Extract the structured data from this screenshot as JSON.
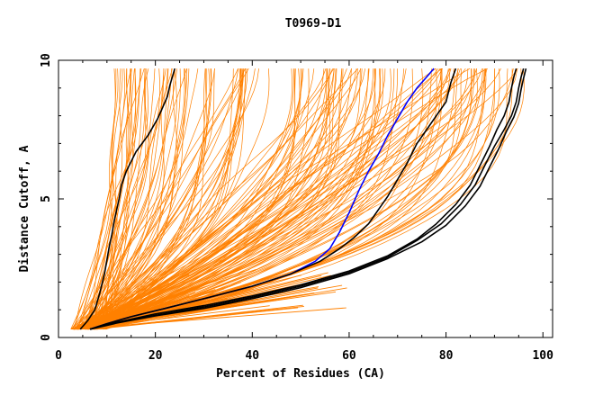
{
  "chart_data": {
    "type": "line",
    "title": "T0969-D1",
    "xlabel": "Percent of Residues (CA)",
    "ylabel": "Distance Cutoff, A",
    "xlim": [
      0,
      102
    ],
    "ylim": [
      0,
      10
    ],
    "xticks": [
      0,
      20,
      40,
      60,
      80,
      100
    ],
    "yticks": [
      0,
      5,
      10
    ],
    "grid": false,
    "colors": {
      "background_models": "#ff8000",
      "highlight_black": "#000000",
      "highlight_blue": "#0000ff"
    },
    "background_models": {
      "count": 170,
      "y_start": 0.3,
      "y_end": 9.7,
      "envelope_x_at_y_start": [
        2.5,
        10
      ],
      "envelope_x_at_y_end": [
        11,
        97
      ]
    },
    "series": [
      {
        "name": "model-black-1",
        "color": "#000000",
        "x": [
          4.5,
          6,
          7.5,
          8.5,
          9.5,
          10,
          10.5,
          11,
          11.5,
          12,
          12.5,
          13,
          14,
          16,
          18.5,
          20.5,
          21.5,
          22.5,
          23,
          24
        ],
        "y": [
          0.3,
          0.6,
          1,
          1.6,
          2.3,
          2.8,
          3.3,
          3.7,
          4.2,
          4.6,
          5,
          5.5,
          6,
          6.7,
          7.3,
          7.9,
          8.3,
          8.7,
          9.1,
          9.7
        ]
      },
      {
        "name": "model-blue",
        "color": "#0000ff",
        "x": [
          6.5,
          10,
          15,
          22,
          30,
          40,
          48,
          53,
          56,
          58,
          60,
          62,
          64,
          66,
          68,
          70,
          72,
          74,
          76,
          77.5
        ],
        "y": [
          0.3,
          0.5,
          0.75,
          1.05,
          1.4,
          1.85,
          2.3,
          2.75,
          3.2,
          3.8,
          4.5,
          5.3,
          6,
          6.6,
          7.3,
          7.9,
          8.5,
          9,
          9.4,
          9.7
        ]
      },
      {
        "name": "model-black-2",
        "color": "#000000",
        "x": [
          6.5,
          10,
          15,
          22,
          30,
          40,
          48,
          54,
          58,
          61,
          64,
          66,
          68,
          70,
          72,
          74,
          76,
          78,
          80,
          81,
          82
        ],
        "y": [
          0.3,
          0.5,
          0.75,
          1.05,
          1.4,
          1.85,
          2.3,
          2.75,
          3.2,
          3.6,
          4.1,
          4.6,
          5.1,
          5.7,
          6.3,
          7,
          7.5,
          8,
          8.5,
          9.2,
          9.7
        ]
      },
      {
        "name": "model-black-3",
        "color": "#000000",
        "x": [
          6.5,
          12,
          20,
          30,
          40,
          50,
          60,
          68,
          74,
          78,
          82,
          85,
          87,
          89,
          90.5,
          92,
          93,
          93.5,
          94,
          94.5
        ],
        "y": [
          0.3,
          0.55,
          0.85,
          1.15,
          1.5,
          1.9,
          2.4,
          2.95,
          3.55,
          4.1,
          4.8,
          5.5,
          6.2,
          6.9,
          7.5,
          8,
          8.5,
          9,
          9.4,
          9.7
        ]
      },
      {
        "name": "model-black-4",
        "color": "#000000",
        "x": [
          6.5,
          12,
          20,
          30,
          40,
          50,
          60,
          68,
          74,
          79,
          83,
          86,
          88,
          90,
          92,
          93.5,
          94.5,
          95,
          95.5,
          96
        ],
        "y": [
          0.3,
          0.55,
          0.8,
          1.1,
          1.45,
          1.85,
          2.35,
          2.9,
          3.5,
          4.1,
          4.8,
          5.5,
          6.2,
          6.9,
          7.5,
          8,
          8.5,
          9,
          9.4,
          9.7
        ]
      },
      {
        "name": "model-black-5",
        "color": "#000000",
        "x": [
          6.5,
          12,
          20,
          30,
          40,
          50,
          60,
          68,
          75,
          80,
          84,
          87,
          89,
          91,
          92.5,
          94,
          95,
          95.5,
          96,
          96.5
        ],
        "y": [
          0.3,
          0.52,
          0.78,
          1.05,
          1.4,
          1.8,
          2.3,
          2.85,
          3.45,
          4.05,
          4.75,
          5.45,
          6.15,
          6.85,
          7.45,
          7.95,
          8.45,
          8.95,
          9.35,
          9.7
        ]
      }
    ]
  }
}
